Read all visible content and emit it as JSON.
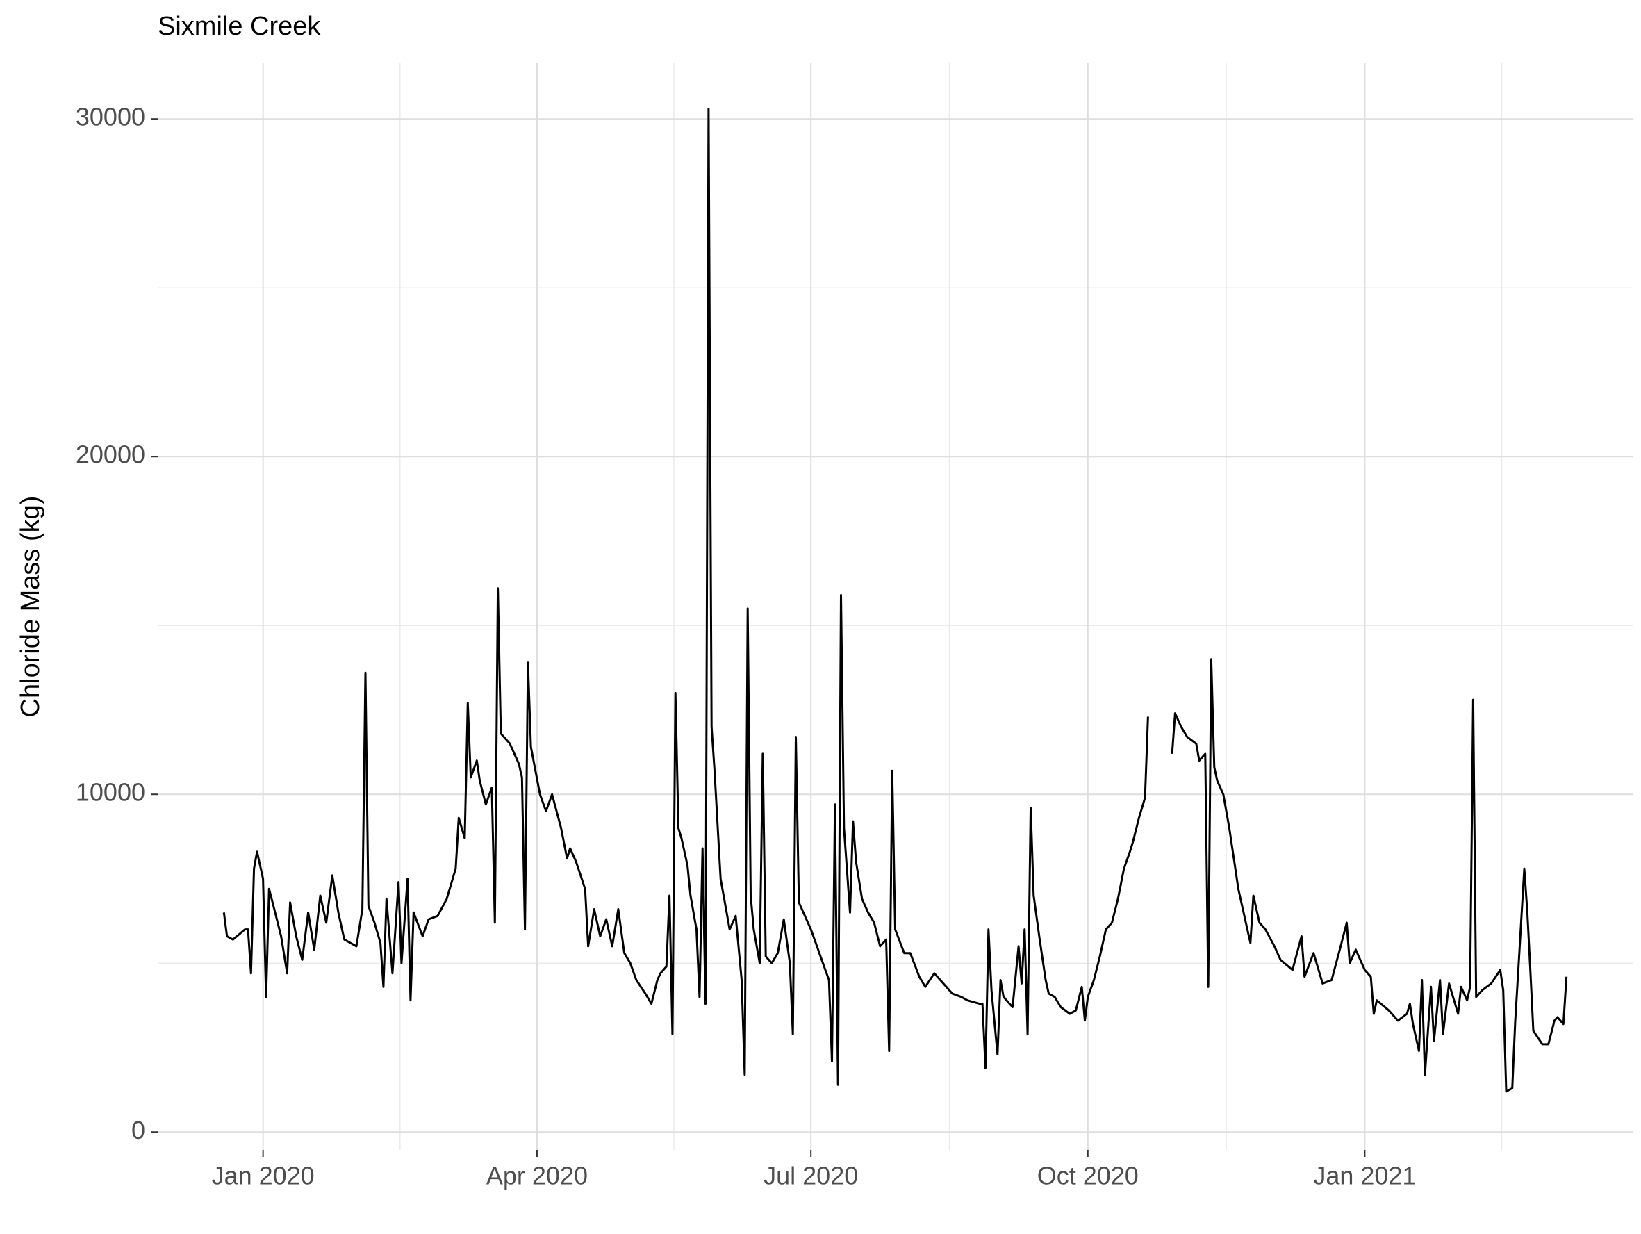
{
  "chart_data": {
    "type": "line",
    "title": "Sixmile Creek",
    "y_label": "Chloride Mass (kg)",
    "color": "#000000",
    "grid": true,
    "xlim": [
      "2019-11-27",
      "2021-03-31"
    ],
    "xticks": [
      {
        "value": "2020-01-01",
        "label": "Jan 2020"
      },
      {
        "value": "2020-04-01",
        "label": "Apr 2020"
      },
      {
        "value": "2020-07-01",
        "label": "Jul 2020"
      },
      {
        "value": "2020-10-01",
        "label": "Oct 2020"
      },
      {
        "value": "2021-01-01",
        "label": "Jan 2021"
      }
    ],
    "ylim": [
      -530,
      31650
    ],
    "yticks": [
      0,
      10000,
      20000,
      30000
    ],
    "x": [
      "2019-12-19",
      "2019-12-20",
      "2019-12-22",
      "2019-12-26",
      "2019-12-27",
      "2019-12-28",
      "2019-12-29",
      "2019-12-30",
      "2020-01-01",
      "2020-01-02",
      "2020-01-03",
      "2020-01-05",
      "2020-01-07",
      "2020-01-09",
      "2020-01-10",
      "2020-01-12",
      "2020-01-14",
      "2020-01-16",
      "2020-01-18",
      "2020-01-20",
      "2020-01-22",
      "2020-01-24",
      "2020-01-26",
      "2020-01-28",
      "2020-02-01",
      "2020-02-03",
      "2020-02-04",
      "2020-02-05",
      "2020-02-07",
      "2020-02-09",
      "2020-02-10",
      "2020-02-11",
      "2020-02-13",
      "2020-02-15",
      "2020-02-16",
      "2020-02-18",
      "2020-02-19",
      "2020-02-20",
      "2020-02-23",
      "2020-02-25",
      "2020-02-28",
      "2020-03-02",
      "2020-03-04",
      "2020-03-05",
      "2020-03-06",
      "2020-03-08",
      "2020-03-09",
      "2020-03-10",
      "2020-03-12",
      "2020-03-13",
      "2020-03-15",
      "2020-03-17",
      "2020-03-18",
      "2020-03-19",
      "2020-03-20",
      "2020-03-23",
      "2020-03-26",
      "2020-03-27",
      "2020-03-28",
      "2020-03-29",
      "2020-03-30",
      "2020-04-02",
      "2020-04-04",
      "2020-04-06",
      "2020-04-09",
      "2020-04-11",
      "2020-04-12",
      "2020-04-14",
      "2020-04-17",
      "2020-04-18",
      "2020-04-20",
      "2020-04-22",
      "2020-04-24",
      "2020-04-26",
      "2020-04-28",
      "2020-04-30",
      "2020-05-02",
      "2020-05-04",
      "2020-05-07",
      "2020-05-09",
      "2020-05-11",
      "2020-05-12",
      "2020-05-14",
      "2020-05-15",
      "2020-05-16",
      "2020-05-17",
      "2020-05-18",
      "2020-05-19",
      "2020-05-21",
      "2020-05-22",
      "2020-05-24",
      "2020-05-25",
      "2020-05-26",
      "2020-05-27",
      "2020-05-28",
      "2020-05-29",
      "2020-05-30",
      "2020-06-01",
      "2020-06-03",
      "2020-06-04",
      "2020-06-06",
      "2020-06-08",
      "2020-06-09",
      "2020-06-10",
      "2020-06-11",
      "2020-06-12",
      "2020-06-14",
      "2020-06-15",
      "2020-06-16",
      "2020-06-18",
      "2020-06-20",
      "2020-06-22",
      "2020-06-24",
      "2020-06-25",
      "2020-06-26",
      "2020-06-27",
      "2020-07-01",
      "2020-07-03",
      "2020-07-05",
      "2020-07-07",
      "2020-07-08",
      "2020-07-09",
      "2020-07-10",
      "2020-07-11",
      "2020-07-12",
      "2020-07-14",
      "2020-07-15",
      "2020-07-16",
      "2020-07-18",
      "2020-07-20",
      "2020-07-22",
      "2020-07-24",
      "2020-07-26",
      "2020-07-27",
      "2020-07-28",
      "2020-07-29",
      "2020-08-01",
      "2020-08-03",
      "2020-08-06",
      "2020-08-08",
      "2020-08-11",
      "2020-08-14",
      "2020-08-17",
      "2020-08-20",
      "2020-08-22",
      "2020-08-26",
      "2020-08-27",
      "2020-08-28",
      "2020-08-29",
      "2020-08-30",
      "2020-09-01",
      "2020-09-02",
      "2020-09-03",
      "2020-09-05",
      "2020-09-06",
      "2020-09-08",
      "2020-09-09",
      "2020-09-10",
      "2020-09-11",
      "2020-09-12",
      "2020-09-13",
      "2020-09-15",
      "2020-09-17",
      "2020-09-18",
      "2020-09-20",
      "2020-09-22",
      "2020-09-25",
      "2020-09-27",
      "2020-09-29",
      "2020-09-30",
      "2020-10-01",
      "2020-10-03",
      "2020-10-05",
      "2020-10-07",
      "2020-10-09",
      "2020-10-11",
      "2020-10-13",
      "2020-10-15",
      "2020-10-16",
      "2020-10-18",
      "2020-10-20",
      "2020-10-21",
      "2020-10-25",
      "2020-10-29",
      "2020-10-30",
      "2020-11-01",
      "2020-11-03",
      "2020-11-06",
      "2020-11-07",
      "2020-11-09",
      "2020-11-10",
      "2020-11-11",
      "2020-11-12",
      "2020-11-13",
      "2020-11-15",
      "2020-11-17",
      "2020-11-19",
      "2020-11-20",
      "2020-11-23",
      "2020-11-24",
      "2020-11-25",
      "2020-11-27",
      "2020-11-29",
      "2020-12-02",
      "2020-12-04",
      "2020-12-08",
      "2020-12-11",
      "2020-12-12",
      "2020-12-15",
      "2020-12-18",
      "2020-12-21",
      "2020-12-24",
      "2020-12-26",
      "2020-12-27",
      "2020-12-29",
      "2021-01-01",
      "2021-01-03",
      "2021-01-04",
      "2021-01-05",
      "2021-01-09",
      "2021-01-12",
      "2021-01-15",
      "2021-01-16",
      "2021-01-17",
      "2021-01-19",
      "2021-01-20",
      "2021-01-21",
      "2021-01-23",
      "2021-01-24",
      "2021-01-26",
      "2021-01-27",
      "2021-01-29",
      "2021-02-01",
      "2021-02-02",
      "2021-02-04",
      "2021-02-05",
      "2021-02-06",
      "2021-02-07",
      "2021-02-09",
      "2021-02-12",
      "2021-02-15",
      "2021-02-16",
      "2021-02-17",
      "2021-02-19",
      "2021-02-20",
      "2021-02-21",
      "2021-02-23",
      "2021-02-24",
      "2021-02-25",
      "2021-02-26",
      "2021-03-01",
      "2021-03-03",
      "2021-03-05",
      "2021-03-06",
      "2021-03-08",
      "2021-03-09"
    ],
    "values": [
      6500,
      5800,
      5700,
      6000,
      6000,
      4700,
      7800,
      8300,
      7500,
      4000,
      7200,
      6500,
      5800,
      4700,
      6800,
      5800,
      5100,
      6500,
      5400,
      7000,
      6200,
      7600,
      6500,
      5700,
      5500,
      6600,
      13600,
      6700,
      6200,
      5600,
      4300,
      6900,
      4700,
      7400,
      5000,
      7500,
      3900,
      6500,
      5800,
      6300,
      6400,
      6900,
      7500,
      7800,
      9300,
      8700,
      12700,
      10500,
      11000,
      10400,
      9700,
      10200,
      6200,
      16100,
      11800,
      11500,
      10900,
      10500,
      6000,
      13900,
      11400,
      10000,
      9500,
      10000,
      9000,
      8100,
      8400,
      8000,
      7200,
      5500,
      6600,
      5800,
      6300,
      5500,
      6600,
      5300,
      5000,
      4500,
      4100,
      3800,
      4500,
      4700,
      4900,
      7000,
      2900,
      13000,
      9000,
      8700,
      7900,
      7000,
      6000,
      4000,
      8400,
      3800,
      30300,
      12000,
      10700,
      7500,
      6500,
      6000,
      6400,
      4500,
      1700,
      15500,
      7000,
      6000,
      5000,
      11200,
      5200,
      5000,
      5300,
      6300,
      5000,
      2900,
      11700,
      6800,
      6000,
      5500,
      5000,
      4500,
      2100,
      9700,
      1400,
      15900,
      9000,
      6500,
      9200,
      8000,
      6900,
      6500,
      6200,
      5500,
      5700,
      2400,
      10700,
      6000,
      5300,
      5300,
      4600,
      4300,
      4700,
      4400,
      4100,
      4000,
      3900,
      3800,
      3800,
      1900,
      6000,
      4200,
      2300,
      4500,
      4000,
      3800,
      3700,
      5500,
      4400,
      6000,
      2900,
      9600,
      7000,
      5700,
      4500,
      4100,
      4000,
      3700,
      3500,
      3600,
      4300,
      3300,
      4000,
      4500,
      5200,
      6000,
      6200,
      6900,
      7800,
      8300,
      8600,
      9300,
      9900,
      12300,
      null,
      11200,
      12400,
      12000,
      11700,
      11500,
      11000,
      11200,
      4300,
      14000,
      10800,
      10400,
      10000,
      9000,
      7800,
      7200,
      6000,
      5600,
      7000,
      6200,
      6000,
      5500,
      5100,
      4800,
      5800,
      4600,
      5300,
      4400,
      4500,
      5500,
      6200,
      5000,
      5400,
      4800,
      4600,
      3500,
      3900,
      3600,
      3300,
      3500,
      3800,
      3200,
      2400,
      4500,
      1700,
      4300,
      2700,
      4500,
      2900,
      4400,
      3500,
      4300,
      3900,
      4300,
      12800,
      4000,
      4200,
      4400,
      4800,
      4200,
      1200,
      1300,
      3300,
      4800,
      7800,
      6500,
      4800,
      3000,
      2600,
      2600,
      3300,
      3400,
      3200,
      4600
    ]
  }
}
